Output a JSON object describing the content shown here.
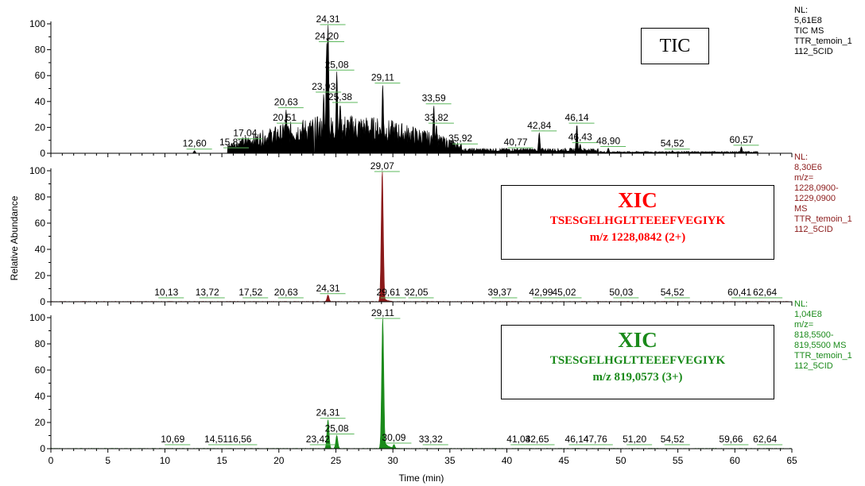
{
  "chart_data": {
    "type": "line",
    "xlabel": "Time (min)",
    "ylabel": "Relative Abundance",
    "xlim": [
      0,
      65
    ],
    "x_ticks": [
      0,
      5,
      10,
      15,
      20,
      25,
      30,
      35,
      40,
      45,
      50,
      55,
      60,
      65
    ],
    "panels": [
      {
        "name": "TIC",
        "box_title": "TIC",
        "color": "#000000",
        "ylim": [
          0,
          100
        ],
        "y_ticks": [
          0,
          20,
          40,
          60,
          80,
          100
        ],
        "side_info": [
          "NL:",
          "5,61E8",
          "TIC  MS",
          "TTR_temoin_1",
          "112_5CID"
        ],
        "side_color": "#000000",
        "peaks": [
          {
            "rt": 12.6,
            "label": "12,60",
            "y": 2
          },
          {
            "rt": 15.83,
            "label": "15,83",
            "y": 3
          },
          {
            "rt": 17.04,
            "label": "17,04",
            "y": 10
          },
          {
            "rt": 20.51,
            "label": "20,51",
            "y": 22
          },
          {
            "rt": 20.63,
            "label": "20,63",
            "y": 34
          },
          {
            "rt": 23.93,
            "label": "23,93",
            "y": 46
          },
          {
            "rt": 24.2,
            "label": "24,20",
            "y": 85
          },
          {
            "rt": 24.31,
            "label": "24,31",
            "y": 100
          },
          {
            "rt": 25.08,
            "label": "25,08",
            "y": 63
          },
          {
            "rt": 25.38,
            "label": "25,38",
            "y": 38
          },
          {
            "rt": 29.11,
            "label": "29,11",
            "y": 53
          },
          {
            "rt": 33.59,
            "label": "33,59",
            "y": 37
          },
          {
            "rt": 33.82,
            "label": "33,82",
            "y": 22
          },
          {
            "rt": 35.92,
            "label": "35,92",
            "y": 6
          },
          {
            "rt": 40.77,
            "label": "40,77",
            "y": 3
          },
          {
            "rt": 42.84,
            "label": "42,84",
            "y": 16
          },
          {
            "rt": 46.14,
            "label": "46,14",
            "y": 22
          },
          {
            "rt": 46.43,
            "label": "46,43",
            "y": 7
          },
          {
            "rt": 48.9,
            "label": "48,90",
            "y": 4
          },
          {
            "rt": 54.52,
            "label": "54,52",
            "y": 2
          },
          {
            "rt": 60.57,
            "label": "60,57",
            "y": 5
          }
        ]
      },
      {
        "name": "XIC 2+",
        "box_title": "XIC",
        "box_peptide": "TSESGELHGLTTEEEFVEGIYK",
        "box_mz": "m/z 1228,0842 (2+)",
        "color": "#8b1a1a",
        "box_color": "#ff0000",
        "ylim": [
          0,
          100
        ],
        "y_ticks": [
          0,
          20,
          40,
          60,
          80,
          100
        ],
        "side_info": [
          "NL:",
          "8,30E6",
          "m/z=",
          "1228,0900-",
          "1229,0900",
          "MS",
          "TTR_temoin_1",
          "112_5CID"
        ],
        "side_color": "#8b1a1a",
        "peaks": [
          {
            "rt": 10.13,
            "label": "10,13",
            "y": 0.5
          },
          {
            "rt": 13.72,
            "label": "13,72",
            "y": 0.5
          },
          {
            "rt": 17.52,
            "label": "17,52",
            "y": 0.5
          },
          {
            "rt": 20.63,
            "label": "20,63",
            "y": 0.5
          },
          {
            "rt": 24.31,
            "label": "24,31",
            "y": 5
          },
          {
            "rt": 29.07,
            "label": "29,07",
            "y": 100
          },
          {
            "rt": 29.61,
            "label": "29,61",
            "y": 1
          },
          {
            "rt": 32.05,
            "label": "32,05",
            "y": 0.5
          },
          {
            "rt": 39.37,
            "label": "39,37",
            "y": 0.5
          },
          {
            "rt": 42.99,
            "label": "42,99",
            "y": 0.5
          },
          {
            "rt": 45.02,
            "label": "45,02",
            "y": 0.5
          },
          {
            "rt": 50.03,
            "label": "50,03",
            "y": 0.5
          },
          {
            "rt": 54.52,
            "label": "54,52",
            "y": 0.5
          },
          {
            "rt": 60.41,
            "label": "60,41",
            "y": 0.5
          },
          {
            "rt": 62.64,
            "label": "62,64",
            "y": 0.5
          }
        ]
      },
      {
        "name": "XIC 3+",
        "box_title": "XIC",
        "box_peptide": "TSESGELHGLTTEEEFVEGIYK",
        "box_mz": "m/z 819,0573 (3+)",
        "color": "#1a8a1a",
        "box_color": "#1a8a1a",
        "ylim": [
          0,
          100
        ],
        "y_ticks": [
          0,
          20,
          40,
          60,
          80,
          100
        ],
        "side_info": [
          "NL:",
          "1,04E8",
          "m/z=",
          "818,5500-",
          "819,5500  MS",
          "TTR_temoin_1",
          "112_5CID"
        ],
        "side_color": "#1a8a1a",
        "peaks": [
          {
            "rt": 10.69,
            "label": "10,69",
            "y": 1
          },
          {
            "rt": 14.51,
            "label": "14,51",
            "y": 1
          },
          {
            "rt": 16.56,
            "label": "16,56",
            "y": 1
          },
          {
            "rt": 23.42,
            "label": "23,42",
            "y": 1
          },
          {
            "rt": 24.31,
            "label": "24,31",
            "y": 22
          },
          {
            "rt": 25.08,
            "label": "25,08",
            "y": 10
          },
          {
            "rt": 29.11,
            "label": "29,11",
            "y": 100
          },
          {
            "rt": 30.09,
            "label": "30,09",
            "y": 3
          },
          {
            "rt": 33.32,
            "label": "33,32",
            "y": 1
          },
          {
            "rt": 41.03,
            "label": "41,03",
            "y": 1
          },
          {
            "rt": 42.65,
            "label": "42,65",
            "y": 1
          },
          {
            "rt": 46.14,
            "label": "46,14",
            "y": 1
          },
          {
            "rt": 47.76,
            "label": "47,76",
            "y": 1
          },
          {
            "rt": 51.2,
            "label": "51,20",
            "y": 1
          },
          {
            "rt": 54.52,
            "label": "54,52",
            "y": 1
          },
          {
            "rt": 59.66,
            "label": "59,66",
            "y": 1
          },
          {
            "rt": 62.64,
            "label": "62,64",
            "y": 1
          }
        ]
      }
    ]
  }
}
